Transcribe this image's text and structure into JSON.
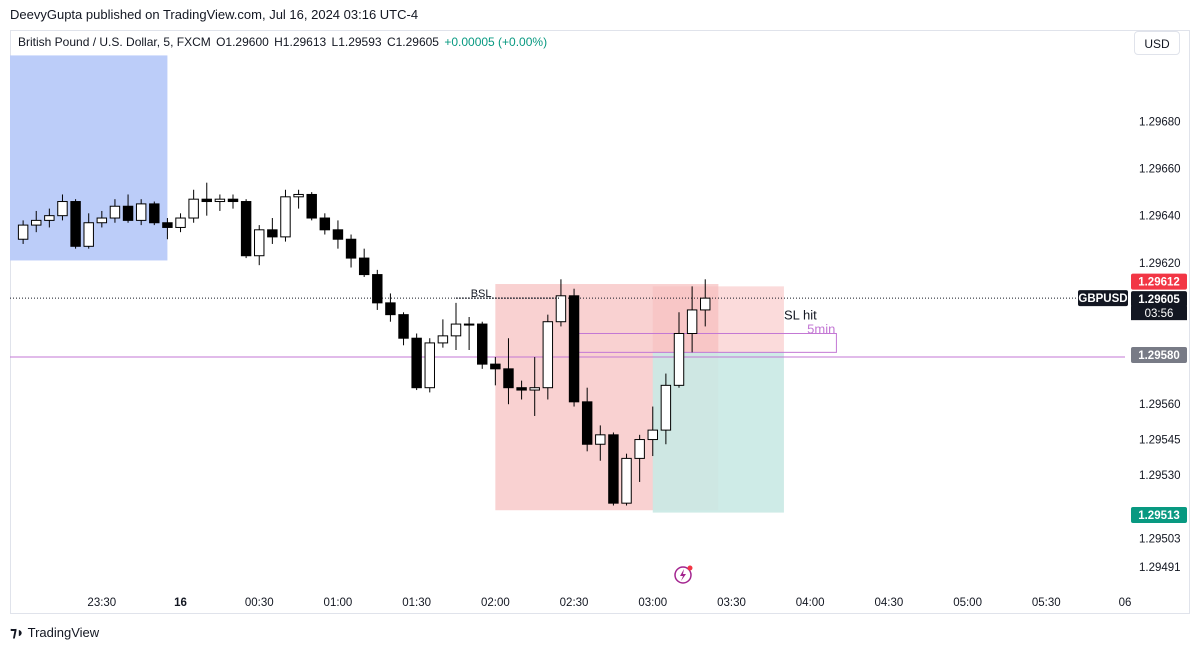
{
  "header": {
    "publisher_line": "DeevyGupta published on TradingView.com, Jul 16, 2024 03:16 UTC-4"
  },
  "legend": {
    "symbol_name": "British Pound / U.S. Dollar, 5, FXCM",
    "open": "O1.29600",
    "high": "H1.29613",
    "low": "L1.29593",
    "close": "C1.29605",
    "change": "+0.00005 (+0.00%)"
  },
  "currency_button": "USD",
  "footer": {
    "brand": "TradingView"
  },
  "colors": {
    "bull_body": "#ffffff",
    "bear_body": "#000000",
    "wick": "#000000",
    "highlight_zone": "#bccdf9",
    "loss_zone": "#f7bdbd",
    "profit_zone": "#c9e9e4",
    "level_line": "#c377d4",
    "last_price_label": "#f23645",
    "target_label": "#089981",
    "marked_label": "#787b86",
    "ticker_label": "#131722"
  },
  "chart_data": {
    "type": "candlestick",
    "title": "British Pound / U.S. Dollar, 5, FXCM",
    "y_range": [
      1.29482,
      1.29712
    ],
    "y_ticks": [
      "1.29680",
      "1.29660",
      "1.29640",
      "1.29620",
      "1.29560",
      "1.29545",
      "1.29530",
      "1.29503",
      "1.29491"
    ],
    "x_ticks": [
      "23:30",
      "16",
      "00:30",
      "01:00",
      "01:30",
      "02:00",
      "02:30",
      "03:00",
      "03:30",
      "04:00",
      "04:30",
      "05:00",
      "05:30",
      "06"
    ],
    "x_tick_times": [
      "2024-07-15 23:30",
      "2024-07-16 00:00",
      "2024-07-16 00:30",
      "2024-07-16 01:00",
      "2024-07-16 01:30",
      "2024-07-16 02:00",
      "2024-07-16 02:30",
      "2024-07-16 03:00",
      "2024-07-16 03:30",
      "2024-07-16 04:00",
      "2024-07-16 04:30",
      "2024-07-16 05:00",
      "2024-07-16 05:30",
      "2024-07-16 06:00"
    ],
    "x_range": [
      "2024-07-15 22:55",
      "2024-07-16 06:00"
    ],
    "candles": [
      {
        "t": "2024-07-15 23:00",
        "o": 1.2963,
        "h": 1.29638,
        "l": 1.29628,
        "c": 1.29636
      },
      {
        "t": "2024-07-15 23:05",
        "o": 1.29636,
        "h": 1.29642,
        "l": 1.29633,
        "c": 1.29638
      },
      {
        "t": "2024-07-15 23:10",
        "o": 1.29638,
        "h": 1.29643,
        "l": 1.29635,
        "c": 1.2964
      },
      {
        "t": "2024-07-15 23:15",
        "o": 1.2964,
        "h": 1.29649,
        "l": 1.29638,
        "c": 1.29646
      },
      {
        "t": "2024-07-15 23:20",
        "o": 1.29646,
        "h": 1.29647,
        "l": 1.29626,
        "c": 1.29627
      },
      {
        "t": "2024-07-15 23:25",
        "o": 1.29627,
        "h": 1.29641,
        "l": 1.29626,
        "c": 1.29637
      },
      {
        "t": "2024-07-15 23:30",
        "o": 1.29637,
        "h": 1.29642,
        "l": 1.29635,
        "c": 1.29639
      },
      {
        "t": "2024-07-15 23:35",
        "o": 1.29639,
        "h": 1.29647,
        "l": 1.29637,
        "c": 1.29644
      },
      {
        "t": "2024-07-15 23:40",
        "o": 1.29644,
        "h": 1.29649,
        "l": 1.29637,
        "c": 1.29638
      },
      {
        "t": "2024-07-15 23:45",
        "o": 1.29638,
        "h": 1.29647,
        "l": 1.29636,
        "c": 1.29645
      },
      {
        "t": "2024-07-15 23:50",
        "o": 1.29645,
        "h": 1.29646,
        "l": 1.29636,
        "c": 1.29637
      },
      {
        "t": "2024-07-15 23:55",
        "o": 1.29637,
        "h": 1.29639,
        "l": 1.2963,
        "c": 1.29635
      },
      {
        "t": "2024-07-16 00:00",
        "o": 1.29635,
        "h": 1.29641,
        "l": 1.29633,
        "c": 1.29639
      },
      {
        "t": "2024-07-16 00:05",
        "o": 1.29639,
        "h": 1.29651,
        "l": 1.29637,
        "c": 1.29647
      },
      {
        "t": "2024-07-16 00:10",
        "o": 1.29647,
        "h": 1.29654,
        "l": 1.2964,
        "c": 1.29646
      },
      {
        "t": "2024-07-16 00:15",
        "o": 1.29646,
        "h": 1.29649,
        "l": 1.29642,
        "c": 1.29647
      },
      {
        "t": "2024-07-16 00:20",
        "o": 1.29647,
        "h": 1.29649,
        "l": 1.29643,
        "c": 1.29646
      },
      {
        "t": "2024-07-16 00:25",
        "o": 1.29646,
        "h": 1.29647,
        "l": 1.29622,
        "c": 1.29623
      },
      {
        "t": "2024-07-16 00:30",
        "o": 1.29623,
        "h": 1.29636,
        "l": 1.29619,
        "c": 1.29634
      },
      {
        "t": "2024-07-16 00:35",
        "o": 1.29634,
        "h": 1.29639,
        "l": 1.29628,
        "c": 1.29631
      },
      {
        "t": "2024-07-16 00:40",
        "o": 1.29631,
        "h": 1.29651,
        "l": 1.29629,
        "c": 1.29648
      },
      {
        "t": "2024-07-16 00:45",
        "o": 1.29648,
        "h": 1.29651,
        "l": 1.29643,
        "c": 1.29649
      },
      {
        "t": "2024-07-16 00:50",
        "o": 1.29649,
        "h": 1.2965,
        "l": 1.29638,
        "c": 1.29639
      },
      {
        "t": "2024-07-16 00:55",
        "o": 1.29639,
        "h": 1.29641,
        "l": 1.29632,
        "c": 1.29634
      },
      {
        "t": "2024-07-16 01:00",
        "o": 1.29634,
        "h": 1.29638,
        "l": 1.29626,
        "c": 1.2963
      },
      {
        "t": "2024-07-16 01:05",
        "o": 1.2963,
        "h": 1.29632,
        "l": 1.29618,
        "c": 1.29622
      },
      {
        "t": "2024-07-16 01:10",
        "o": 1.29622,
        "h": 1.29626,
        "l": 1.29614,
        "c": 1.29615
      },
      {
        "t": "2024-07-16 01:15",
        "o": 1.29615,
        "h": 1.29617,
        "l": 1.296,
        "c": 1.29603
      },
      {
        "t": "2024-07-16 01:20",
        "o": 1.29603,
        "h": 1.29607,
        "l": 1.29595,
        "c": 1.29598
      },
      {
        "t": "2024-07-16 01:25",
        "o": 1.29598,
        "h": 1.29599,
        "l": 1.29585,
        "c": 1.29588
      },
      {
        "t": "2024-07-16 01:30",
        "o": 1.29588,
        "h": 1.2959,
        "l": 1.29566,
        "c": 1.29567
      },
      {
        "t": "2024-07-16 01:35",
        "o": 1.29567,
        "h": 1.29588,
        "l": 1.29565,
        "c": 1.29586
      },
      {
        "t": "2024-07-16 01:40",
        "o": 1.29586,
        "h": 1.29596,
        "l": 1.29584,
        "c": 1.29589
      },
      {
        "t": "2024-07-16 01:45",
        "o": 1.29589,
        "h": 1.29603,
        "l": 1.29583,
        "c": 1.29594
      },
      {
        "t": "2024-07-16 01:50",
        "o": 1.29594,
        "h": 1.29597,
        "l": 1.29583,
        "c": 1.29594
      },
      {
        "t": "2024-07-16 01:55",
        "o": 1.29594,
        "h": 1.29595,
        "l": 1.29575,
        "c": 1.29577
      },
      {
        "t": "2024-07-16 02:00",
        "o": 1.29577,
        "h": 1.2958,
        "l": 1.29568,
        "c": 1.29575
      },
      {
        "t": "2024-07-16 02:05",
        "o": 1.29575,
        "h": 1.29588,
        "l": 1.2956,
        "c": 1.29567
      },
      {
        "t": "2024-07-16 02:10",
        "o": 1.29567,
        "h": 1.2957,
        "l": 1.29562,
        "c": 1.29566
      },
      {
        "t": "2024-07-16 02:15",
        "o": 1.29566,
        "h": 1.2958,
        "l": 1.29555,
        "c": 1.29567
      },
      {
        "t": "2024-07-16 02:20",
        "o": 1.29567,
        "h": 1.29598,
        "l": 1.29562,
        "c": 1.29595
      },
      {
        "t": "2024-07-16 02:25",
        "o": 1.29595,
        "h": 1.29613,
        "l": 1.29593,
        "c": 1.29606
      },
      {
        "t": "2024-07-16 02:30",
        "o": 1.29606,
        "h": 1.29609,
        "l": 1.29559,
        "c": 1.29561
      },
      {
        "t": "2024-07-16 02:35",
        "o": 1.29561,
        "h": 1.29567,
        "l": 1.2954,
        "c": 1.29543
      },
      {
        "t": "2024-07-16 02:40",
        "o": 1.29543,
        "h": 1.29551,
        "l": 1.29536,
        "c": 1.29547
      },
      {
        "t": "2024-07-16 02:45",
        "o": 1.29547,
        "h": 1.29548,
        "l": 1.29517,
        "c": 1.29518
      },
      {
        "t": "2024-07-16 02:50",
        "o": 1.29518,
        "h": 1.29539,
        "l": 1.29517,
        "c": 1.29537
      },
      {
        "t": "2024-07-16 02:55",
        "o": 1.29537,
        "h": 1.29547,
        "l": 1.29527,
        "c": 1.29545
      },
      {
        "t": "2024-07-16 03:00",
        "o": 1.29545,
        "h": 1.29559,
        "l": 1.29538,
        "c": 1.29549
      },
      {
        "t": "2024-07-16 03:05",
        "o": 1.29549,
        "h": 1.29573,
        "l": 1.29543,
        "c": 1.29568
      },
      {
        "t": "2024-07-16 03:10",
        "o": 1.29568,
        "h": 1.29599,
        "l": 1.29567,
        "c": 1.2959
      },
      {
        "t": "2024-07-16 03:15",
        "o": 1.2959,
        "h": 1.2961,
        "l": 1.29582,
        "c": 1.296
      },
      {
        "t": "2024-07-16 03:20",
        "o": 1.296,
        "h": 1.29613,
        "l": 1.29593,
        "c": 1.29605
      }
    ],
    "annotations": {
      "bsl_label": "BSL",
      "bsl_level": 1.29605,
      "sl_label": "SL hit",
      "tf_label": "5min",
      "highlight_zone": {
        "from": "2024-07-15 22:55",
        "to": "2024-07-15 23:55",
        "top": 1.29708,
        "bottom": 1.29621
      },
      "loss_zone_1": {
        "from": "2024-07-16 02:00",
        "to": "2024-07-16 03:25",
        "top": 1.29611,
        "bottom": 1.29515
      },
      "profit_zone": {
        "from": "2024-07-16 03:00",
        "to": "2024-07-16 03:50",
        "top": 1.29582,
        "bottom": 1.29514
      },
      "loss_zone_2": {
        "from": "2024-07-16 03:00",
        "to": "2024-07-16 03:50",
        "top": 1.2961,
        "bottom": 1.29582
      },
      "purple_box": {
        "from": "2024-07-16 02:30",
        "to": "2024-07-16 04:10",
        "top": 1.2959,
        "bottom": 1.29582
      },
      "level_line": 1.2958
    },
    "price_labels": {
      "last": "1.29612",
      "ticker": "GBPUSD",
      "current": "1.29605",
      "countdown": "03:56",
      "marked": "1.29580",
      "target": "1.29513"
    }
  }
}
